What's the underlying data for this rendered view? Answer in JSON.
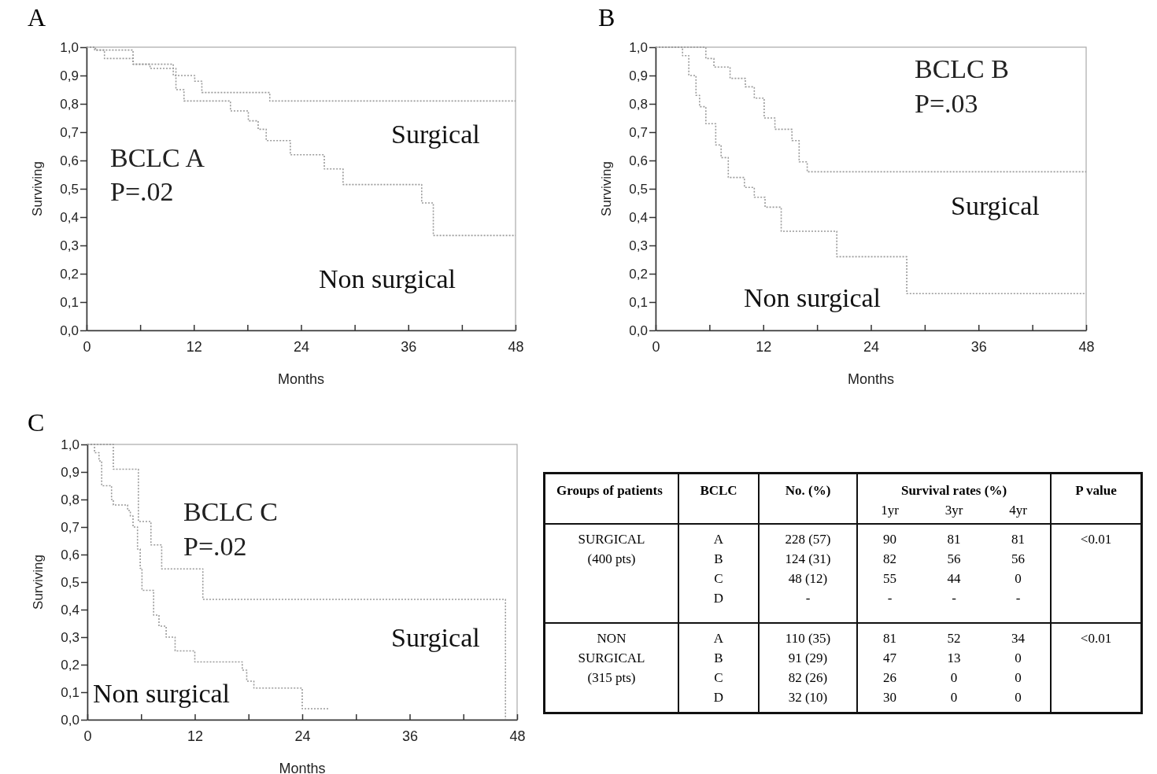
{
  "chart_data": [
    {
      "type": "step",
      "title": "A",
      "xlabel": "Months",
      "ylabel": "Surviving",
      "annotations": [
        "BCLC A",
        "P=.02"
      ],
      "line_style": "dotted",
      "marker": "none",
      "grid": false,
      "xlim": [
        0,
        48
      ],
      "xticks": [
        0,
        {
          "value": 6,
          "label": null
        },
        12,
        {
          "value": 18,
          "label": null
        },
        24,
        {
          "value": 30,
          "label": null
        },
        36,
        {
          "value": 42,
          "label": null
        },
        48
      ],
      "ylim": [
        0,
        1
      ],
      "yticks": [
        {
          "value": 0,
          "label": "0,0"
        },
        {
          "value": 0.1,
          "label": "0,1"
        },
        {
          "value": 0.2,
          "label": "0,2"
        },
        {
          "value": 0.3,
          "label": "0,3"
        },
        {
          "value": 0.4,
          "label": "0,4"
        },
        {
          "value": 0.5,
          "label": "0,5"
        },
        {
          "value": 0.6,
          "label": "0,6"
        },
        {
          "value": 0.7,
          "label": "0,7"
        },
        {
          "value": 0.8,
          "label": "0,8"
        },
        {
          "value": 0.9,
          "label": "0,9"
        },
        {
          "value": 1,
          "label": "1,0"
        }
      ],
      "series": [
        {
          "name": "Surgical",
          "color": "#9a9a9a",
          "x": [
            0,
            1,
            5.2,
            9.7,
            12.1,
            12.9,
            20.5,
            48
          ],
          "values": [
            1,
            0.99,
            0.94,
            0.9,
            0.88,
            0.84,
            0.81,
            0.81
          ]
        },
        {
          "name": "Non surgical",
          "color": "#9a9a9a",
          "x": [
            0,
            0.9,
            2,
            5.2,
            7.1,
            10,
            10.9,
            16.1,
            18.1,
            19.2,
            20.1,
            22.8,
            26.6,
            28.7,
            37.5,
            38.8,
            48
          ],
          "values": [
            1,
            0.99,
            0.96,
            0.94,
            0.925,
            0.85,
            0.81,
            0.775,
            0.74,
            0.71,
            0.67,
            0.62,
            0.57,
            0.515,
            0.45,
            0.335,
            0.335
          ]
        }
      ]
    },
    {
      "type": "step",
      "title": "B",
      "xlabel": "Months",
      "ylabel": "Surviving",
      "annotations": [
        "BCLC B",
        "P=.03"
      ],
      "line_style": "dotted",
      "marker": "none",
      "grid": false,
      "xlim": [
        0,
        48
      ],
      "xticks": [
        0,
        {
          "value": 6,
          "label": null
        },
        12,
        {
          "value": 18,
          "label": null
        },
        24,
        {
          "value": 30,
          "label": null
        },
        36,
        {
          "value": 42,
          "label": null
        },
        48
      ],
      "ylim": [
        0,
        1
      ],
      "yticks": [
        {
          "value": 0,
          "label": "0,0"
        },
        {
          "value": 0.1,
          "label": "0,1"
        },
        {
          "value": 0.2,
          "label": "0,2"
        },
        {
          "value": 0.3,
          "label": "0,3"
        },
        {
          "value": 0.4,
          "label": "0,4"
        },
        {
          "value": 0.5,
          "label": "0,5"
        },
        {
          "value": 0.6,
          "label": "0,6"
        },
        {
          "value": 0.7,
          "label": "0,7"
        },
        {
          "value": 0.8,
          "label": "0,8"
        },
        {
          "value": 0.9,
          "label": "0,9"
        },
        {
          "value": 1,
          "label": "1,0"
        }
      ],
      "series": [
        {
          "name": "Surgical",
          "color": "#9a9a9a",
          "x": [
            0,
            5.6,
            6.5,
            8.3,
            10,
            11,
            12.1,
            13.3,
            15.2,
            16,
            16.9,
            48
          ],
          "values": [
            1,
            0.96,
            0.93,
            0.89,
            0.86,
            0.82,
            0.75,
            0.71,
            0.67,
            0.595,
            0.56,
            0.56
          ]
        },
        {
          "name": "Non surgical",
          "color": "#9a9a9a",
          "x": [
            0,
            3,
            3.7,
            4.5,
            4.9,
            5.6,
            6.7,
            7.3,
            8.1,
            9.9,
            11,
            12.2,
            14,
            20.2,
            28,
            48
          ],
          "values": [
            1,
            0.97,
            0.9,
            0.83,
            0.79,
            0.73,
            0.655,
            0.61,
            0.54,
            0.505,
            0.47,
            0.435,
            0.35,
            0.26,
            0.13,
            0.13
          ]
        }
      ]
    },
    {
      "type": "step",
      "title": "C",
      "xlabel": "Months",
      "ylabel": "Surviving",
      "annotations": [
        "BCLC C",
        "P=.02"
      ],
      "line_style": "dotted",
      "marker": "none",
      "grid": false,
      "xlim": [
        0,
        48
      ],
      "xticks": [
        0,
        {
          "value": 6,
          "label": null
        },
        12,
        {
          "value": 18,
          "label": null
        },
        24,
        {
          "value": 30,
          "label": null
        },
        36,
        {
          "value": 42,
          "label": null
        },
        48
      ],
      "ylim": [
        0,
        1
      ],
      "yticks": [
        {
          "value": 0,
          "label": "0,0"
        },
        {
          "value": 0.1,
          "label": "0,1"
        },
        {
          "value": 0.2,
          "label": "0,2"
        },
        {
          "value": 0.3,
          "label": "0,3"
        },
        {
          "value": 0.4,
          "label": "0,4"
        },
        {
          "value": 0.5,
          "label": "0,5"
        },
        {
          "value": 0.6,
          "label": "0,6"
        },
        {
          "value": 0.7,
          "label": "0,7"
        },
        {
          "value": 0.8,
          "label": "0,8"
        },
        {
          "value": 0.9,
          "label": "0,9"
        },
        {
          "value": 1,
          "label": "1,0"
        }
      ],
      "series": [
        {
          "name": "Surgical",
          "color": "#9a9a9a",
          "x": [
            0,
            2.9,
            5.7,
            7.1,
            8.3,
            12.9,
            46.7
          ],
          "values": [
            1,
            0.91,
            0.72,
            0.635,
            0.548,
            0.437,
            0
          ]
        },
        {
          "name": "Non surgical",
          "color": "#9a9a9a",
          "x": [
            0,
            0.8,
            1.3,
            1.6,
            2.7,
            2.9,
            4.5,
            4.8,
            5.1,
            5.6,
            5.9,
            6.1,
            7.4,
            8,
            8.8,
            9.8,
            12,
            17.3,
            17.8,
            18.6,
            24,
            27
          ],
          "values": [
            1,
            0.97,
            0.94,
            0.85,
            0.8,
            0.78,
            0.76,
            0.74,
            0.7,
            0.62,
            0.55,
            0.47,
            0.38,
            0.34,
            0.3,
            0.25,
            0.21,
            0.18,
            0.14,
            0.115,
            0.04,
            0.04
          ]
        }
      ]
    },
    {
      "type": "other",
      "annotations": [
        "Survival rates (%)"
      ],
      "categories": [
        "Groups of patients",
        "BCLC",
        "No.  (%)",
        "1yr",
        "3yr",
        "4yr",
        "P value"
      ],
      "cell_labels": [
        [
          "SURGICAL",
          "A",
          "228 (57)",
          "90",
          "81",
          "81",
          "<0.01"
        ],
        [
          "(400 pts)",
          "B",
          "124 (31)",
          "82",
          "56",
          "56",
          null
        ],
        [
          null,
          "C",
          "48 (12)",
          "55",
          "44",
          "0",
          null
        ],
        [
          null,
          "D",
          "-",
          "-",
          "-",
          "-",
          null
        ],
        [
          "NON",
          "A",
          "110 (35)",
          "81",
          "52",
          "34",
          "<0.01"
        ],
        [
          "SURGICAL",
          "B",
          "91 (29)",
          "47",
          "13",
          "0",
          null
        ],
        [
          "(315 pts)",
          "C",
          "82 (26)",
          "26",
          "0",
          "0",
          null
        ],
        [
          null,
          "D",
          "32 (10)",
          "30",
          "0",
          "0",
          null
        ]
      ]
    }
  ]
}
